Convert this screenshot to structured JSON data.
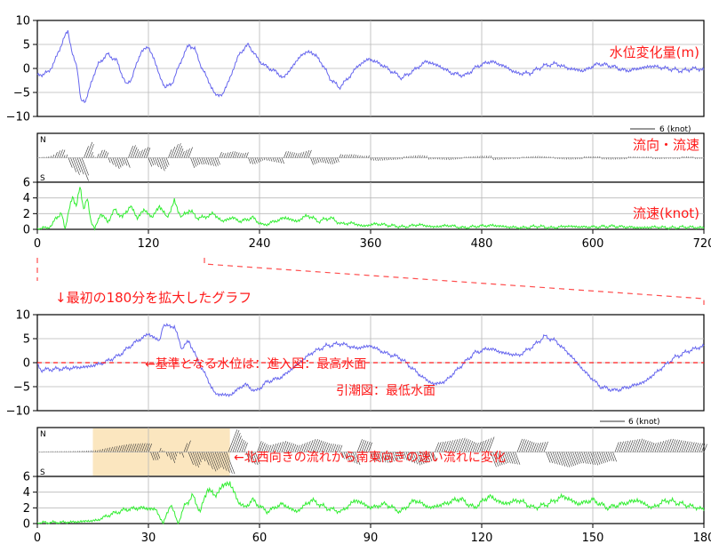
{
  "colors": {
    "water_level": "#6666ee",
    "flow_vector": "#333333",
    "flow_speed": "#33ee33",
    "annotation": "#ff1a1a",
    "highlight": "#fbe6bf",
    "grid": "#b8b8b8"
  },
  "top_labels": {
    "level": "水位変化量(m)",
    "direction": "流向・流速",
    "speed": "流速(knot)",
    "scale_key": "6 (knot)"
  },
  "bottom_labels": {
    "zoom_caption": "↓最初の180分を拡大したグラフ",
    "baseline_note": "←基準となる水位は：進入図：最高水面",
    "baseline_note2": "引潮図：最低水面",
    "flow_change_note": "←北西向きの流れから南東向きの速い流れに変化",
    "scale_key": "6 (knot)"
  },
  "compass": {
    "north": "N",
    "south": "S"
  },
  "chart_data": [
    {
      "type": "line",
      "name": "full-period",
      "xlim": [
        0,
        720
      ],
      "xticks": [
        0,
        120,
        240,
        360,
        480,
        600,
        720
      ],
      "grid": true,
      "level_ylim": [
        -10,
        10
      ],
      "level_yticks": [
        10,
        5,
        0,
        -5,
        -10
      ],
      "speed_ylim": [
        0,
        6
      ],
      "speed_yticks": [
        6,
        4,
        2,
        0
      ],
      "level_keypoints": [
        [
          0,
          -1.5
        ],
        [
          12,
          -0.8
        ],
        [
          20,
          2
        ],
        [
          28,
          6
        ],
        [
          33,
          7.8
        ],
        [
          38,
          3
        ],
        [
          43,
          0
        ],
        [
          47,
          -6.5
        ],
        [
          52,
          -7
        ],
        [
          58,
          -3
        ],
        [
          66,
          1
        ],
        [
          76,
          3
        ],
        [
          86,
          1.5
        ],
        [
          96,
          -3.5
        ],
        [
          102,
          -2
        ],
        [
          112,
          3.5
        ],
        [
          120,
          4.5
        ],
        [
          126,
          2
        ],
        [
          132,
          -1.5
        ],
        [
          138,
          -4
        ],
        [
          146,
          -3
        ],
        [
          156,
          2
        ],
        [
          164,
          5
        ],
        [
          170,
          4
        ],
        [
          178,
          0
        ],
        [
          186,
          -3
        ],
        [
          192,
          -5.5
        ],
        [
          200,
          -5.5
        ],
        [
          208,
          -2
        ],
        [
          218,
          3
        ],
        [
          228,
          5
        ],
        [
          238,
          2
        ],
        [
          246,
          0.5
        ],
        [
          256,
          -0.5
        ],
        [
          266,
          -2
        ],
        [
          276,
          0.5
        ],
        [
          286,
          3
        ],
        [
          296,
          3.5
        ],
        [
          306,
          1.5
        ],
        [
          316,
          -2
        ],
        [
          326,
          -4
        ],
        [
          336,
          -2
        ],
        [
          346,
          0.5
        ],
        [
          358,
          2
        ],
        [
          370,
          1
        ],
        [
          382,
          -0.5
        ],
        [
          394,
          -2
        ],
        [
          406,
          -0.5
        ],
        [
          420,
          1.5
        ],
        [
          434,
          0.5
        ],
        [
          448,
          -1
        ],
        [
          462,
          -1.5
        ],
        [
          476,
          0.5
        ],
        [
          490,
          1.5
        ],
        [
          504,
          0.5
        ],
        [
          518,
          -1
        ],
        [
          532,
          -1
        ],
        [
          546,
          0.5
        ],
        [
          560,
          1
        ],
        [
          574,
          0
        ],
        [
          590,
          -0.5
        ],
        [
          606,
          1
        ],
        [
          620,
          0.5
        ],
        [
          636,
          -0.5
        ],
        [
          650,
          0
        ],
        [
          664,
          0.5
        ],
        [
          680,
          0
        ],
        [
          696,
          -0.5
        ],
        [
          710,
          0
        ],
        [
          720,
          -0.3
        ]
      ],
      "speed_keypoints": [
        [
          0,
          0.1
        ],
        [
          10,
          0.2
        ],
        [
          16,
          0.5
        ],
        [
          20,
          1.5
        ],
        [
          26,
          2
        ],
        [
          30,
          0
        ],
        [
          34,
          2.5
        ],
        [
          38,
          4
        ],
        [
          42,
          3
        ],
        [
          46,
          5.5
        ],
        [
          50,
          2.5
        ],
        [
          54,
          4
        ],
        [
          58,
          1
        ],
        [
          62,
          0
        ],
        [
          68,
          2
        ],
        [
          76,
          1
        ],
        [
          84,
          2.5
        ],
        [
          92,
          1.5
        ],
        [
          100,
          3
        ],
        [
          108,
          1.5
        ],
        [
          116,
          2.5
        ],
        [
          124,
          1.5
        ],
        [
          132,
          3
        ],
        [
          140,
          1.5
        ],
        [
          148,
          3.5
        ],
        [
          156,
          1.5
        ],
        [
          164,
          2.5
        ],
        [
          172,
          1.5
        ],
        [
          180,
          1.5
        ],
        [
          190,
          2
        ],
        [
          200,
          1
        ],
        [
          210,
          1.5
        ],
        [
          220,
          1
        ],
        [
          232,
          1.5
        ],
        [
          244,
          0.5
        ],
        [
          256,
          1
        ],
        [
          268,
          1.5
        ],
        [
          280,
          1
        ],
        [
          292,
          1.8
        ],
        [
          304,
          1
        ],
        [
          316,
          1.5
        ],
        [
          328,
          0.7
        ],
        [
          340,
          0.8
        ],
        [
          352,
          0.4
        ],
        [
          366,
          0.7
        ],
        [
          380,
          0.5
        ],
        [
          396,
          0.3
        ],
        [
          412,
          0.6
        ],
        [
          428,
          0.3
        ],
        [
          444,
          0.5
        ],
        [
          460,
          0.2
        ],
        [
          476,
          0.4
        ],
        [
          492,
          0.5
        ],
        [
          508,
          0.3
        ],
        [
          524,
          0.2
        ],
        [
          540,
          0.4
        ],
        [
          556,
          0.2
        ],
        [
          572,
          0.4
        ],
        [
          588,
          0.3
        ],
        [
          604,
          0.3
        ],
        [
          620,
          0.4
        ],
        [
          636,
          0.3
        ],
        [
          652,
          0.2
        ],
        [
          668,
          0.3
        ],
        [
          684,
          0.2
        ],
        [
          700,
          0.3
        ],
        [
          720,
          0.2
        ]
      ]
    },
    {
      "type": "line",
      "name": "first-180-minutes",
      "xlim": [
        0,
        180
      ],
      "xticks": [
        0,
        30,
        60,
        90,
        120,
        150,
        180
      ],
      "grid": true,
      "level_ylim": [
        -10,
        10
      ],
      "level_yticks": [
        10,
        5,
        0,
        -5,
        -10
      ],
      "speed_ylim": [
        0,
        6
      ],
      "speed_yticks": [
        6,
        4,
        2,
        0
      ],
      "reference_level": 0,
      "highlight_x": [
        15,
        52
      ],
      "level_keypoints": [
        [
          0,
          -0.5
        ],
        [
          1,
          -1.5
        ],
        [
          8,
          -1.2
        ],
        [
          14,
          -0.8
        ],
        [
          18,
          0
        ],
        [
          22,
          1.5
        ],
        [
          26,
          4
        ],
        [
          30,
          6
        ],
        [
          33,
          4.5
        ],
        [
          34,
          7.8
        ],
        [
          37,
          7.5
        ],
        [
          39,
          3
        ],
        [
          41,
          4.5
        ],
        [
          43,
          1
        ],
        [
          45,
          -2
        ],
        [
          48,
          -6.5
        ],
        [
          52,
          -6.8
        ],
        [
          56,
          -4.5
        ],
        [
          59,
          -6
        ],
        [
          62,
          -4
        ],
        [
          66,
          -3
        ],
        [
          70,
          -0.5
        ],
        [
          74,
          2
        ],
        [
          78,
          3.5
        ],
        [
          82,
          4
        ],
        [
          86,
          3
        ],
        [
          90,
          3.5
        ],
        [
          94,
          2
        ],
        [
          98,
          1
        ],
        [
          101,
          -1
        ],
        [
          104,
          -3
        ],
        [
          107,
          -4.5
        ],
        [
          110,
          -4
        ],
        [
          114,
          -1
        ],
        [
          118,
          2
        ],
        [
          122,
          3
        ],
        [
          126,
          2
        ],
        [
          130,
          1.5
        ],
        [
          134,
          3.5
        ],
        [
          137,
          5.5
        ],
        [
          140,
          4.5
        ],
        [
          144,
          1.5
        ],
        [
          148,
          -2
        ],
        [
          152,
          -5
        ],
        [
          156,
          -5.8
        ],
        [
          160,
          -5
        ],
        [
          164,
          -4
        ],
        [
          168,
          -1.5
        ],
        [
          172,
          1
        ],
        [
          176,
          2.5
        ],
        [
          180,
          3.5
        ]
      ],
      "speed_keypoints": [
        [
          0,
          0.1
        ],
        [
          10,
          0.2
        ],
        [
          16,
          0.4
        ],
        [
          20,
          1.2
        ],
        [
          24,
          1.8
        ],
        [
          28,
          2
        ],
        [
          32,
          1.8
        ],
        [
          34,
          0
        ],
        [
          36,
          2.5
        ],
        [
          38,
          0
        ],
        [
          40,
          2.5
        ],
        [
          42,
          3.5
        ],
        [
          44,
          1.5
        ],
        [
          46,
          4.5
        ],
        [
          48,
          3.5
        ],
        [
          50,
          4.8
        ],
        [
          52,
          5.2
        ],
        [
          54,
          3
        ],
        [
          56,
          2
        ],
        [
          58,
          3
        ],
        [
          62,
          1.5
        ],
        [
          66,
          2.5
        ],
        [
          70,
          1.5
        ],
        [
          74,
          3
        ],
        [
          78,
          2
        ],
        [
          82,
          1.5
        ],
        [
          86,
          3
        ],
        [
          90,
          2
        ],
        [
          94,
          2.5
        ],
        [
          98,
          1.5
        ],
        [
          102,
          3
        ],
        [
          106,
          2
        ],
        [
          110,
          2.5
        ],
        [
          114,
          3.2
        ],
        [
          118,
          2
        ],
        [
          122,
          3.5
        ],
        [
          126,
          2.5
        ],
        [
          130,
          3
        ],
        [
          134,
          2
        ],
        [
          138,
          2.5
        ],
        [
          142,
          3.5
        ],
        [
          146,
          2.5
        ],
        [
          150,
          3
        ],
        [
          154,
          2
        ],
        [
          158,
          2.5
        ],
        [
          162,
          3
        ],
        [
          166,
          2
        ],
        [
          170,
          3
        ],
        [
          174,
          2.5
        ],
        [
          180,
          1.8
        ]
      ]
    }
  ]
}
